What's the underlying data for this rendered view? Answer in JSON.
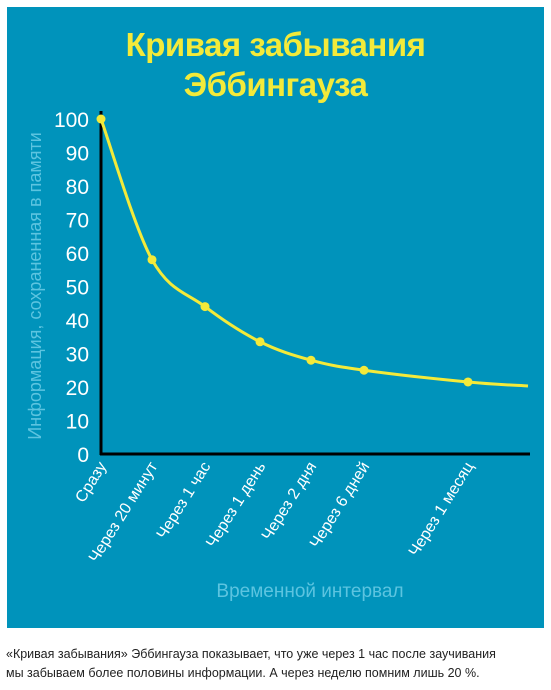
{
  "title": {
    "line1": "Кривая забывания",
    "line2": "Эббингауза"
  },
  "caption": {
    "line1": "«Кривая забывания» Эббингауза показывает, что уже через 1 час после заучивания",
    "line2": "мы забываем более половины информации. А через неделю помним лишь 20 %."
  },
  "colors": {
    "background": "#0093bb",
    "accent": "#f3ea3a",
    "axis_label": "#5cc4e0",
    "tick": "#ffffff"
  },
  "chart_data": {
    "type": "line",
    "title": "Кривая забывания Эббингауза",
    "xlabel": "Временной интервал",
    "ylabel": "Информация, сохраненная в памяти",
    "ylim": [
      0,
      100
    ],
    "yticks": [
      0,
      10,
      20,
      30,
      40,
      50,
      60,
      70,
      80,
      90,
      100
    ],
    "categories": [
      "Сразу",
      "Через 20 минут",
      "Через 1 час",
      "Через 1 день",
      "Через 2 дня",
      "Через 6 дней",
      "Через 1 месяц"
    ],
    "values": [
      100,
      58,
      44,
      33.5,
      28,
      25,
      21.5
    ],
    "grid": false,
    "legend": "none"
  }
}
